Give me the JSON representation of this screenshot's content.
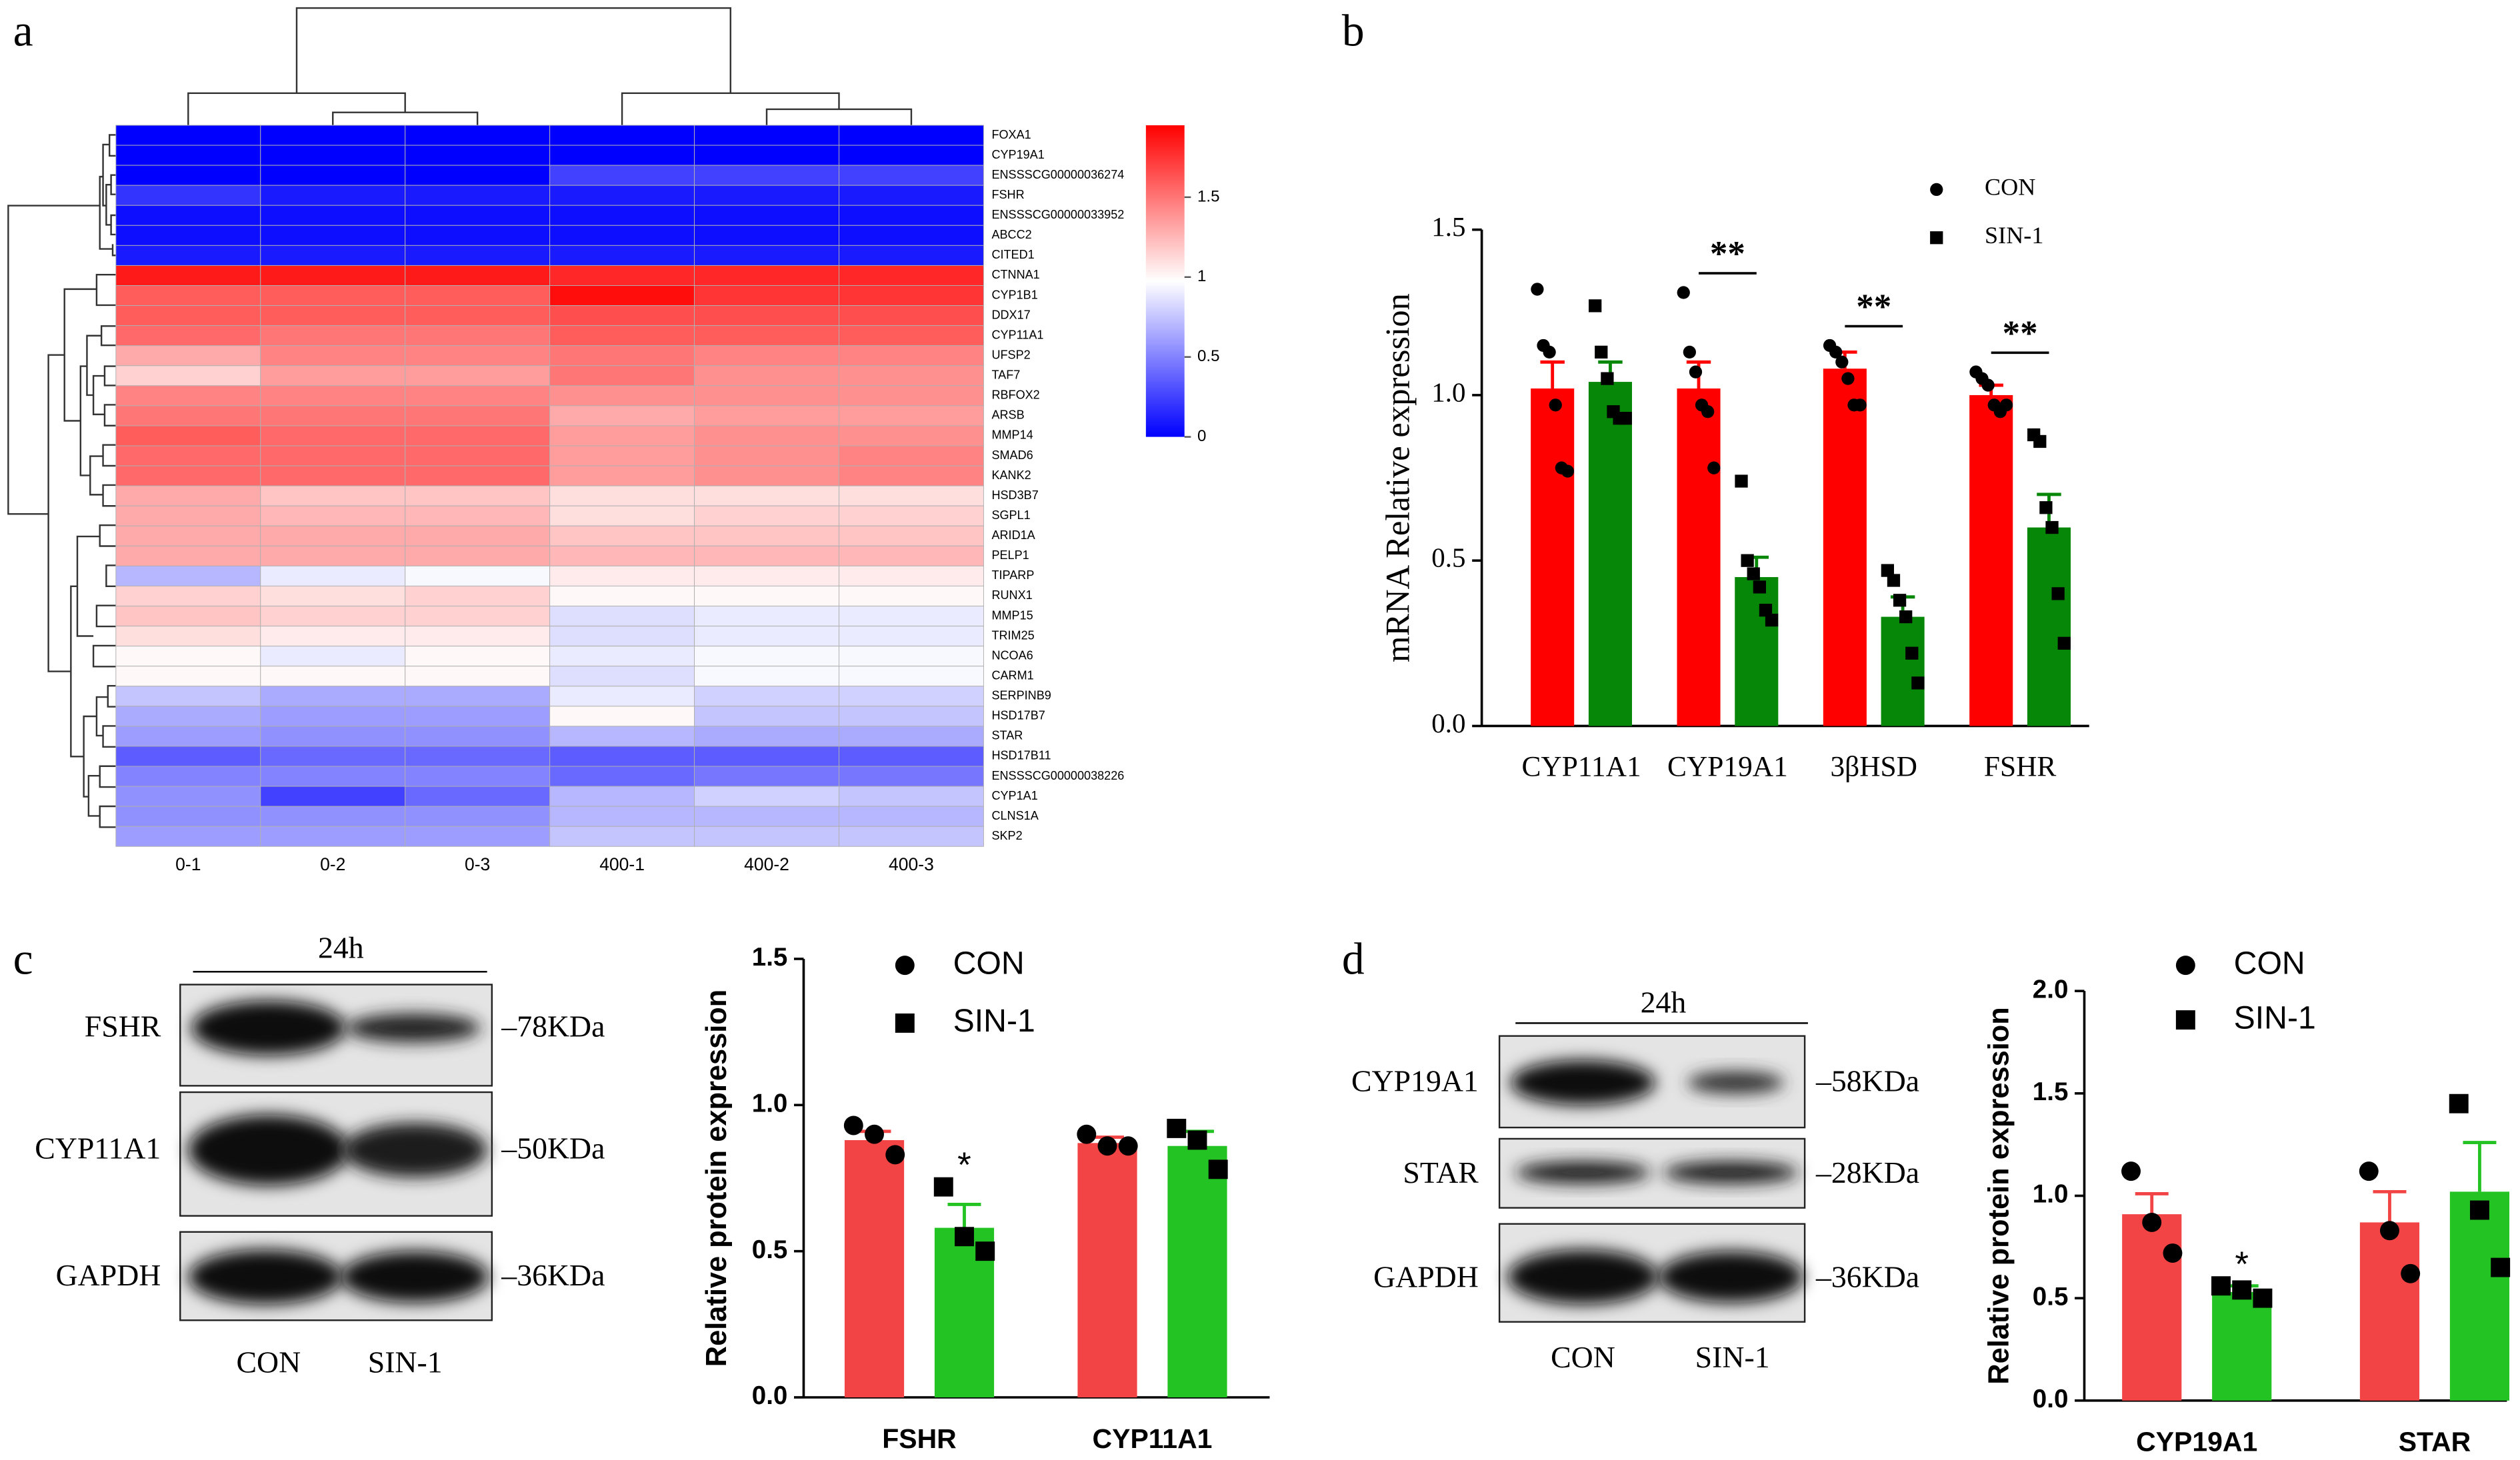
{
  "panels": [
    "a",
    "b",
    "c",
    "d"
  ],
  "chart_data": [
    {
      "type": "heatmap",
      "rows": [
        "FOXA1",
        "CYP19A1",
        "ENSSSCG00000036274",
        "FSHR",
        "ENSSSCG00000033952",
        "ABCC2",
        "CITED1",
        "CTNNA1",
        "CYP1B1",
        "DDX17",
        "CYP11A1",
        "UFSP2",
        "TAF7",
        "RBFOX2",
        "ARSB",
        "MMP14",
        "SMAD6",
        "KANK2",
        "HSD3B7",
        "SGPL1",
        "ARID1A",
        "PELP1",
        "TIPARP",
        "RUNX1",
        "MMP15",
        "TRIM25",
        "NCOA6",
        "CARM1",
        "SERPINB9",
        "HSD17B7",
        "STAR",
        "HSD17B11",
        "ENSSSCG00000038226",
        "CYP1A1",
        "CLNS1A",
        "SKP2"
      ],
      "columns": [
        "0-1",
        "0-2",
        "0-3",
        "400-1",
        "400-2",
        "400-3"
      ],
      "values": [
        [
          0,
          0,
          0,
          0,
          0,
          0
        ],
        [
          0,
          0,
          0,
          0,
          0,
          0
        ],
        [
          0,
          0,
          0,
          0.25,
          0.25,
          0.25
        ],
        [
          0.2,
          0.1,
          0.1,
          0.1,
          0.1,
          0.1
        ],
        [
          0.05,
          0.05,
          0.05,
          0.05,
          0.05,
          0.05
        ],
        [
          0.05,
          0.05,
          0.05,
          0.05,
          0.05,
          0.05
        ],
        [
          0.1,
          0.1,
          0.1,
          0.1,
          0.1,
          0.1
        ],
        [
          1.85,
          1.85,
          1.85,
          1.8,
          1.8,
          1.8
        ],
        [
          1.6,
          1.6,
          1.6,
          1.9,
          1.75,
          1.75
        ],
        [
          1.6,
          1.6,
          1.6,
          1.65,
          1.65,
          1.65
        ],
        [
          1.55,
          1.5,
          1.5,
          1.6,
          1.6,
          1.6
        ],
        [
          1.3,
          1.45,
          1.45,
          1.5,
          1.45,
          1.45
        ],
        [
          1.15,
          1.35,
          1.35,
          1.5,
          1.4,
          1.4
        ],
        [
          1.45,
          1.45,
          1.45,
          1.4,
          1.4,
          1.4
        ],
        [
          1.5,
          1.5,
          1.5,
          1.3,
          1.35,
          1.35
        ],
        [
          1.6,
          1.55,
          1.55,
          1.35,
          1.4,
          1.4
        ],
        [
          1.55,
          1.55,
          1.55,
          1.35,
          1.4,
          1.45
        ],
        [
          1.55,
          1.55,
          1.55,
          1.35,
          1.4,
          1.45
        ],
        [
          1.3,
          1.2,
          1.2,
          1.1,
          1.1,
          1.1
        ],
        [
          1.3,
          1.25,
          1.25,
          1.1,
          1.15,
          1.15
        ],
        [
          1.3,
          1.3,
          1.3,
          1.2,
          1.2,
          1.2
        ],
        [
          1.3,
          1.3,
          1.3,
          1.25,
          1.25,
          1.25
        ],
        [
          0.7,
          0.9,
          0.95,
          1.05,
          1.05,
          1.05
        ],
        [
          1.15,
          1.1,
          1.15,
          1.0,
          1.0,
          1.0
        ],
        [
          1.2,
          1.15,
          1.15,
          0.85,
          0.9,
          0.9
        ],
        [
          1.1,
          1.05,
          1.05,
          0.85,
          0.9,
          0.9
        ],
        [
          1.0,
          0.9,
          1.0,
          0.9,
          0.95,
          0.95
        ],
        [
          1.0,
          1.0,
          1.0,
          0.85,
          0.95,
          0.95
        ],
        [
          0.75,
          0.65,
          0.65,
          0.9,
          0.8,
          0.8
        ],
        [
          0.65,
          0.6,
          0.6,
          1.0,
          0.75,
          0.75
        ],
        [
          0.6,
          0.55,
          0.55,
          0.7,
          0.65,
          0.65
        ],
        [
          0.35,
          0.4,
          0.4,
          0.35,
          0.35,
          0.35
        ],
        [
          0.5,
          0.5,
          0.5,
          0.4,
          0.45,
          0.45
        ],
        [
          0.55,
          0.25,
          0.4,
          0.7,
          0.8,
          0.75
        ],
        [
          0.55,
          0.55,
          0.55,
          0.7,
          0.7,
          0.7
        ],
        [
          0.6,
          0.6,
          0.6,
          0.75,
          0.75,
          0.75
        ]
      ],
      "zlim": [
        0,
        1.95
      ],
      "zticks": [
        0,
        0.5,
        1,
        1.5
      ],
      "colors": [
        "#0000ff",
        "#ffffff",
        "#ff0000"
      ]
    },
    {
      "type": "bar",
      "ylabel": "mRNA Relative expression",
      "categories": [
        "CYP11A1",
        "CYP19A1",
        "3βHSD",
        "FSHR"
      ],
      "ylim": [
        0,
        1.5
      ],
      "yticks": [
        {
          "value": 0,
          "label": "0.0"
        },
        {
          "value": 0.5,
          "label": "0.5"
        },
        {
          "value": 1,
          "label": "1.0"
        },
        {
          "value": 1.5,
          "label": "1.5"
        }
      ],
      "legend": "top-right",
      "series": [
        {
          "name": "CON",
          "color": "#ff0000",
          "marker": "circle",
          "values": [
            1.02,
            1.02,
            1.08,
            1.0
          ],
          "errors": [
            0.08,
            0.08,
            0.05,
            0.03
          ],
          "points": [
            [
              1.32,
              1.15,
              1.13,
              0.97,
              0.78,
              0.77
            ],
            [
              1.31,
              1.13,
              1.07,
              0.97,
              0.95,
              0.78
            ],
            [
              1.15,
              1.13,
              1.1,
              1.05,
              0.97,
              0.97
            ],
            [
              1.07,
              1.05,
              1.03,
              0.97,
              0.95,
              0.97
            ]
          ]
        },
        {
          "name": "SIN-1",
          "color": "#078707",
          "marker": "square",
          "values": [
            1.04,
            0.45,
            0.33,
            0.6
          ],
          "errors": [
            0.06,
            0.06,
            0.06,
            0.1
          ],
          "points": [
            [
              1.27,
              1.13,
              1.05,
              0.95,
              0.93,
              0.93
            ],
            [
              0.74,
              0.5,
              0.46,
              0.42,
              0.35,
              0.32
            ],
            [
              0.47,
              0.44,
              0.38,
              0.33,
              0.22,
              0.13
            ],
            [
              0.88,
              0.86,
              0.66,
              0.6,
              0.4,
              0.25
            ]
          ]
        }
      ],
      "annotations": [
        {
          "index": 1,
          "text": "**"
        },
        {
          "index": 2,
          "text": "**"
        },
        {
          "index": 3,
          "text": "**"
        }
      ]
    },
    {
      "type": "bar",
      "ylabel": "Relative protein expression",
      "categories": [
        "FSHR",
        "CYP11A1"
      ],
      "ylim": [
        0,
        1.5
      ],
      "yticks": [
        {
          "value": 0,
          "label": "0.0"
        },
        {
          "value": 0.5,
          "label": "0.5"
        },
        {
          "value": 1,
          "label": "1.0"
        },
        {
          "value": 1.5,
          "label": "1.5"
        }
      ],
      "legend": "top-left",
      "series": [
        {
          "name": "CON",
          "color": "#f24444",
          "marker": "circle",
          "values": [
            0.88,
            0.87
          ],
          "errors": [
            0.03,
            0.02
          ],
          "points": [
            [
              0.93,
              0.9,
              0.83
            ],
            [
              0.9,
              0.86,
              0.86
            ]
          ]
        },
        {
          "name": "SIN-1",
          "color": "#22c322",
          "marker": "square",
          "values": [
            0.58,
            0.86
          ],
          "errors": [
            0.08,
            0.05
          ],
          "points": [
            [
              0.72,
              0.55,
              0.5
            ],
            [
              0.92,
              0.88,
              0.78
            ]
          ]
        }
      ],
      "annotations": [
        {
          "index": 0,
          "series": 1,
          "text": "*"
        }
      ]
    },
    {
      "type": "bar",
      "ylabel": "Relative protein expression",
      "categories": [
        "CYP19A1",
        "STAR"
      ],
      "ylim": [
        0,
        2
      ],
      "yticks": [
        {
          "value": 0,
          "label": "0.0"
        },
        {
          "value": 0.5,
          "label": "0.5"
        },
        {
          "value": 1,
          "label": "1.0"
        },
        {
          "value": 1.5,
          "label": "1.5"
        },
        {
          "value": 2,
          "label": "2.0"
        }
      ],
      "legend": "top-left",
      "series": [
        {
          "name": "CON",
          "color": "#f24444",
          "marker": "circle",
          "values": [
            0.91,
            0.87
          ],
          "errors": [
            0.1,
            0.15
          ],
          "points": [
            [
              1.12,
              0.87,
              0.72
            ],
            [
              1.12,
              0.83,
              0.62
            ]
          ]
        },
        {
          "name": "SIN-1",
          "color": "#22c322",
          "marker": "square",
          "values": [
            0.53,
            1.02
          ],
          "errors": [
            0.03,
            0.24
          ],
          "points": [
            [
              0.56,
              0.54,
              0.5
            ],
            [
              1.45,
              0.93,
              0.65
            ]
          ]
        }
      ],
      "annotations": [
        {
          "index": 0,
          "series": 1,
          "text": "*"
        }
      ]
    }
  ],
  "blots": [
    {
      "time": "24h",
      "rows": [
        {
          "protein": "FSHR",
          "size": "–78KDa"
        },
        {
          "protein": "CYP11A1",
          "size": "–50KDa"
        },
        {
          "protein": "GAPDH",
          "size": "–36KDa"
        }
      ],
      "lanes": [
        "CON",
        "SIN-1"
      ]
    },
    {
      "time": "24h",
      "rows": [
        {
          "protein": "CYP19A1",
          "size": "–58KDa"
        },
        {
          "protein": "STAR",
          "size": "–28KDa"
        },
        {
          "protein": "GAPDH",
          "size": "–36KDa"
        }
      ],
      "lanes": [
        "CON",
        "SIN-1"
      ]
    }
  ]
}
